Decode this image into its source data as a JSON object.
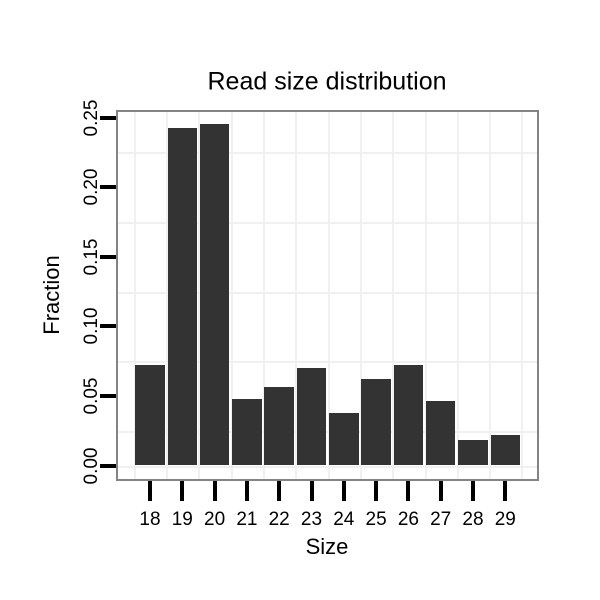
{
  "figure": {
    "background_color": "#ffffff"
  },
  "chart_data": {
    "type": "bar",
    "title": "Read size distribution",
    "xlabel": "Size",
    "ylabel": "Fraction",
    "categories": [
      "18",
      "19",
      "20",
      "21",
      "22",
      "23",
      "24",
      "25",
      "26",
      "27",
      "28",
      "29"
    ],
    "values": [
      0.072,
      0.2425,
      0.245,
      0.048,
      0.0565,
      0.07,
      0.038,
      0.062,
      0.072,
      0.046,
      0.018,
      0.022
    ],
    "y_ticks": [
      "0.00",
      "0.05",
      "0.10",
      "0.15",
      "0.20",
      "0.25"
    ],
    "y_tick_step": 0.05,
    "ylim": [
      0,
      0.259
    ],
    "grid_minor_y": [
      0.025,
      0.075,
      0.125,
      0.175,
      0.225
    ],
    "grid": "minor horizontal lines, vertical lines at category boundaries, zero line",
    "legend": "none",
    "bar_color": "#333333",
    "grid_color": "#f0f0f0",
    "panel_border_color": "#848484",
    "tick_color": "#000000",
    "text_color": "#000000"
  }
}
